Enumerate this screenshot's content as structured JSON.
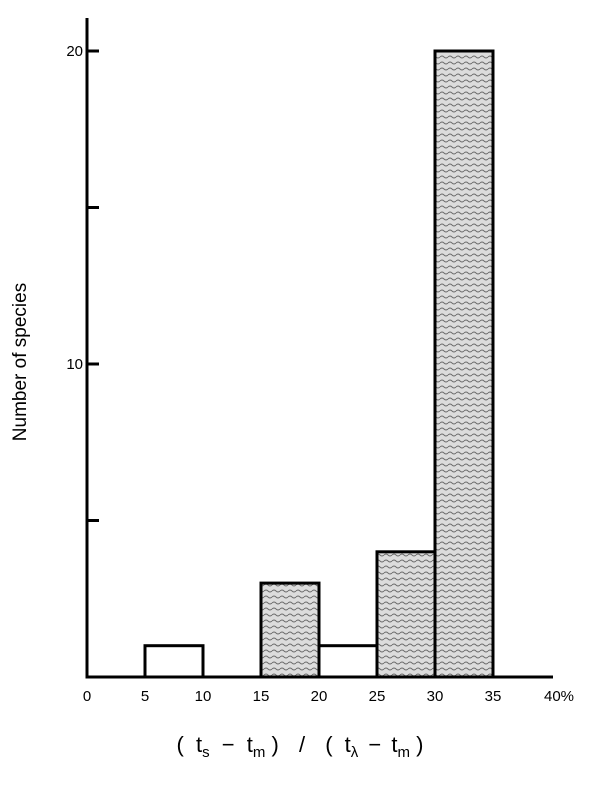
{
  "chart_data": {
    "type": "bar",
    "bins": [
      {
        "x0": 5,
        "x1": 10,
        "value": 1
      },
      {
        "x0": 10,
        "x1": 15,
        "value": 0
      },
      {
        "x0": 15,
        "x1": 20,
        "value": 3
      },
      {
        "x0": 20,
        "x1": 25,
        "value": 1
      },
      {
        "x0": 25,
        "x1": 30,
        "value": 4
      },
      {
        "x0": 30,
        "x1": 35,
        "value": 20
      }
    ],
    "xlim": [
      0,
      40
    ],
    "ylim": [
      0,
      20
    ],
    "x_tick_labels": [
      "0",
      "5",
      "10",
      "15",
      "20",
      "25",
      "30",
      "35",
      "40%"
    ],
    "x_tick_values": [
      0,
      5,
      10,
      15,
      20,
      25,
      30,
      35,
      40
    ],
    "y_tick_labels": [
      "20",
      "10"
    ],
    "y_tick_values": [
      20,
      10
    ],
    "y_minor_ticks": [
      5,
      15
    ],
    "ylabel": "Number of species",
    "xlabel": {
      "open_paren": "(",
      "t1": "t",
      "sub1": "s",
      "minus1": "−",
      "t2": "t",
      "sub2": "m",
      "close_paren": ")",
      "slash": "/",
      "t3": "t",
      "sub3": "λ",
      "minus2": "−",
      "t4": "t",
      "sub4": "m"
    },
    "grid": false,
    "legend": "none",
    "colors": {
      "axis": "#000000",
      "bar_fill": "#d8d8d8",
      "bar_stroke": "#000000"
    }
  }
}
